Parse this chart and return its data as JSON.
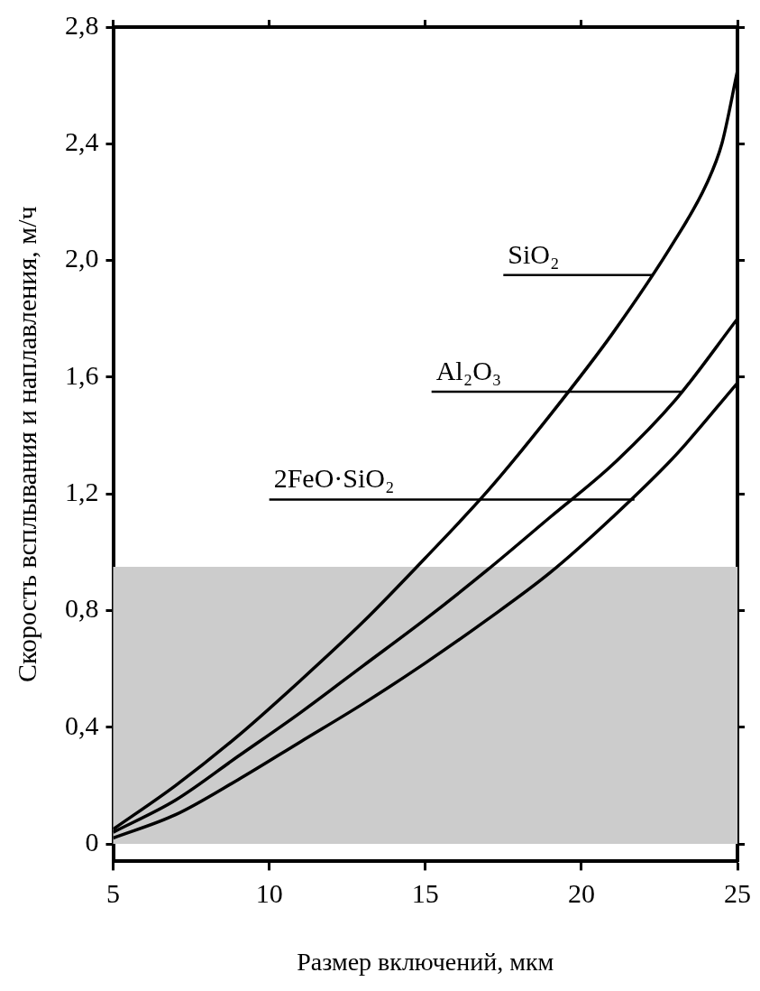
{
  "chart_data": {
    "type": "line",
    "xlabel": "Размер включений, мкм",
    "ylabel": "Скорость всплывания и наплавления, м/ч",
    "xlim": [
      5,
      25
    ],
    "xticks": [
      5,
      10,
      15,
      20,
      25
    ],
    "ylim": [
      -0.06,
      2.8
    ],
    "yticks": [
      {
        "value": 0,
        "label": "0"
      },
      {
        "value": 0.4,
        "label": "0,4"
      },
      {
        "value": 0.8,
        "label": "0,8"
      },
      {
        "value": 1.2,
        "label": "1,2"
      },
      {
        "value": 1.6,
        "label": "1,6"
      },
      {
        "value": 2.0,
        "label": "2,0"
      },
      {
        "value": 2.4,
        "label": "2,4"
      },
      {
        "value": 2.8,
        "label": "2,8"
      }
    ],
    "grid": false,
    "legend": false,
    "marker": "none",
    "line_style": "solid",
    "series": [
      {
        "color": "#000000",
        "x": [
          5,
          7,
          9,
          11,
          13,
          15,
          17,
          19,
          21,
          23,
          24,
          24.5,
          25
        ],
        "values": [
          0.05,
          0.2,
          0.37,
          0.56,
          0.76,
          0.98,
          1.21,
          1.47,
          1.75,
          2.07,
          2.26,
          2.4,
          2.65
        ]
      },
      {
        "color": "#000000",
        "x": [
          5,
          7,
          9,
          11,
          13,
          15,
          17,
          19,
          21,
          23,
          25
        ],
        "values": [
          0.04,
          0.15,
          0.3,
          0.45,
          0.61,
          0.77,
          0.94,
          1.12,
          1.3,
          1.52,
          1.8
        ]
      },
      {
        "color": "#000000",
        "x": [
          5,
          7,
          9,
          11,
          13,
          15,
          17,
          19,
          21,
          23,
          25
        ],
        "values": [
          0.02,
          0.1,
          0.22,
          0.35,
          0.48,
          0.62,
          0.77,
          0.93,
          1.12,
          1.33,
          1.58
        ]
      }
    ],
    "bands": [
      {
        "axis": "y",
        "from": 0,
        "to": 0.95,
        "color": "#cccccc"
      }
    ],
    "annotations": [
      {
        "text": "SiO₂",
        "x": 22.3,
        "y": 1.95
      },
      {
        "text": "Al₂O₃",
        "x": 23.2,
        "y": 1.55
      },
      {
        "text": "2FeO·SiO₂",
        "x": 21.7,
        "y": 1.18
      }
    ]
  }
}
